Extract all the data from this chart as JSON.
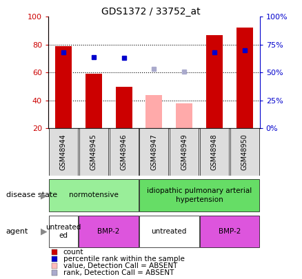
{
  "title": "GDS1372 / 33752_at",
  "samples": [
    "GSM48944",
    "GSM48945",
    "GSM48946",
    "GSM48947",
    "GSM48949",
    "GSM48948",
    "GSM48950"
  ],
  "bar_values": [
    79,
    59,
    50,
    44,
    38,
    87,
    92
  ],
  "bar_colors": [
    "#cc0000",
    "#cc0000",
    "#cc0000",
    "#ffaaaa",
    "#ffaaaa",
    "#cc0000",
    "#cc0000"
  ],
  "rank_values": [
    68,
    64,
    63,
    null,
    null,
    68,
    70
  ],
  "rank_color": "#0000cc",
  "absent_rank_values": [
    null,
    null,
    null,
    53,
    51,
    null,
    null
  ],
  "absent_rank_color": "#aaaacc",
  "ylim_left": [
    20,
    100
  ],
  "ylim_right": [
    0,
    100
  ],
  "yticks_left": [
    20,
    40,
    60,
    80,
    100
  ],
  "yticks_right": [
    0,
    25,
    50,
    75,
    100
  ],
  "left_tick_color": "#cc0000",
  "right_tick_color": "#0000cc",
  "legend_items": [
    {
      "label": "count",
      "color": "#cc0000"
    },
    {
      "label": "percentile rank within the sample",
      "color": "#0000cc"
    },
    {
      "label": "value, Detection Call = ABSENT",
      "color": "#ffbbbb"
    },
    {
      "label": "rank, Detection Call = ABSENT",
      "color": "#aaaacc"
    }
  ],
  "disease_state_label": "disease state",
  "agent_label": "agent",
  "bar_width": 0.55,
  "normotensive_color": "#99ee99",
  "idiopathic_color": "#66dd66",
  "agent_color": "#dd55dd",
  "untreated_first_color": "#ffffff"
}
